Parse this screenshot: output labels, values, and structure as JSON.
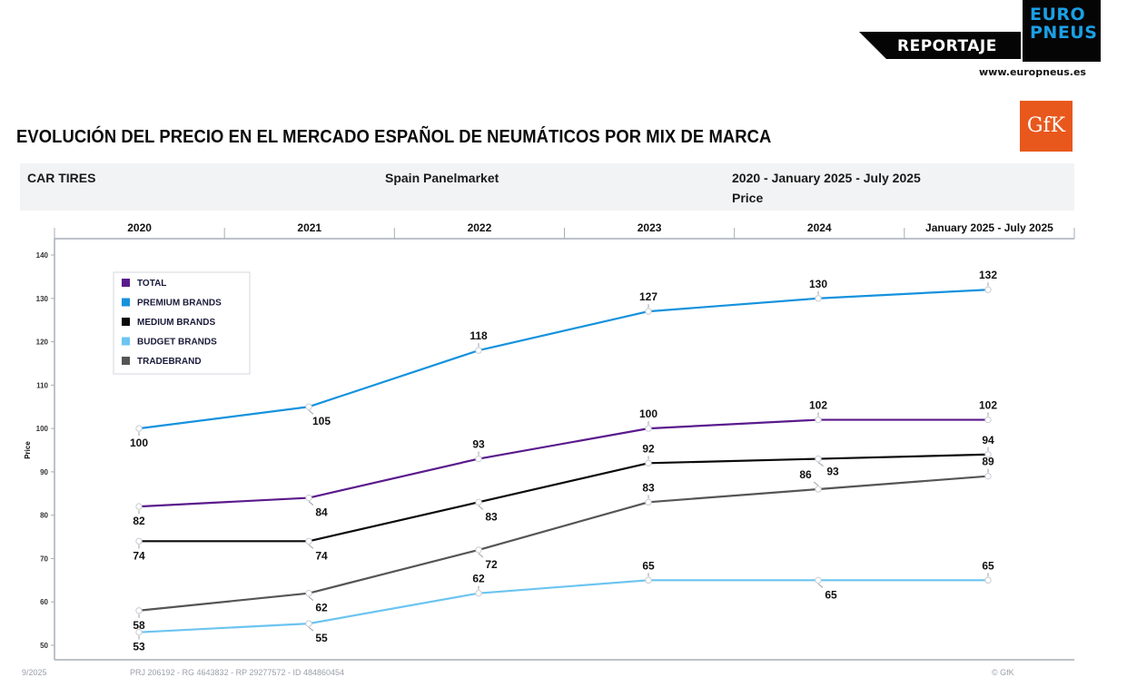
{
  "branding": {
    "section_label": "REPORTAJE",
    "logo_line1": "EURO",
    "logo_line2": "PNEUS",
    "website": "www.europneus.es",
    "source_logo": "GfK",
    "colors": {
      "logo_blue": "#1aa0e6",
      "gfk_orange": "#e8581c"
    }
  },
  "header": {
    "title": "EVOLUCIÓN DEL PRECIO EN EL MERCADO ESPAÑOL DE NEUMÁTICOS POR MIX DE MARCA",
    "info": {
      "category": "CAR TIRES",
      "market": "Spain Panelmarket",
      "period": "2020 - January 2025 - July 2025",
      "measure": "Price"
    }
  },
  "footer": {
    "date": "9/2025",
    "reference": "PRJ 206192 - RG 4643832 - RP 29277572 - ID 484860454",
    "copyright": "© GfK"
  },
  "chart_data": {
    "type": "line",
    "title": "EVOLUCIÓN DEL PRECIO EN EL MERCADO ESPAÑOL DE NEUMÁTICOS POR MIX DE MARCA",
    "xlabel": "",
    "ylabel": "Price",
    "categories": [
      "2020",
      "2021",
      "2022",
      "2023",
      "2024",
      "January 2025 - July 2025"
    ],
    "ylim": [
      50,
      140
    ],
    "yticks": [
      50,
      60,
      70,
      80,
      90,
      100,
      110,
      120,
      130,
      140
    ],
    "grid": false,
    "legend_position": "top-left",
    "series": [
      {
        "name": "TOTAL",
        "color": "#5a1a8c",
        "values": [
          82,
          84,
          93,
          100,
          102,
          102
        ],
        "label_pos": [
          "below",
          "below",
          "above",
          "above",
          "above",
          "above"
        ]
      },
      {
        "name": "PREMIUM BRANDS",
        "color": "#1592dd",
        "values": [
          100,
          105,
          118,
          127,
          130,
          132
        ],
        "label_pos": [
          "below",
          "below",
          "above",
          "above",
          "above",
          "above"
        ]
      },
      {
        "name": "MEDIUM BRANDS",
        "color": "#0a0a0a",
        "values": [
          74,
          74,
          83,
          92,
          93,
          94
        ],
        "label_pos": [
          "below",
          "below",
          "below",
          "above",
          "below-right",
          "above"
        ]
      },
      {
        "name": "BUDGET BRANDS",
        "color": "#6cc4f0",
        "values": [
          53,
          55,
          62,
          65,
          65,
          65
        ],
        "label_pos": [
          "below",
          "below",
          "above",
          "above",
          "below",
          "above"
        ]
      },
      {
        "name": "TRADEBRAND",
        "color": "#555555",
        "values": [
          58,
          62,
          72,
          83,
          86,
          89
        ],
        "label_pos": [
          "below",
          "below",
          "below",
          "above",
          "above-left",
          "above"
        ]
      }
    ]
  }
}
